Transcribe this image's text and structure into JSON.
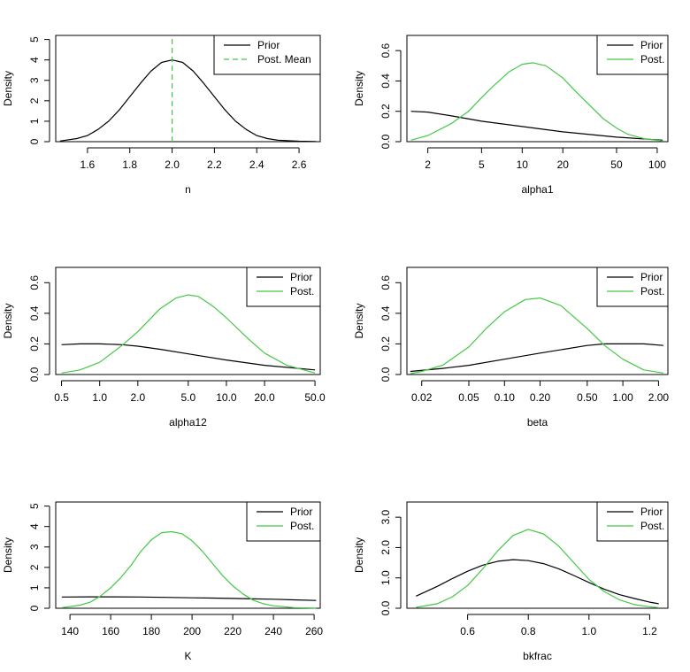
{
  "chart_data": [
    {
      "type": "line",
      "xlabel": "n",
      "ylabel": "Density",
      "xscale": "linear",
      "xlim": [
        1.45,
        2.7
      ],
      "ylim": [
        0,
        5.2
      ],
      "xticks": [
        1.6,
        1.8,
        2.0,
        2.2,
        2.4,
        2.6
      ],
      "xticklabels": [
        "1.6",
        "1.8",
        "2.0",
        "2.2",
        "2.4",
        "2.6"
      ],
      "yticks": [
        0,
        1,
        2,
        3,
        4,
        5
      ],
      "yticklabels": [
        "0",
        "1",
        "2",
        "3",
        "4",
        "5"
      ],
      "legend": "top-right",
      "series": [
        {
          "name": "Prior",
          "color": "#000000",
          "dash": "solid",
          "x": [
            1.47,
            1.55,
            1.6,
            1.65,
            1.7,
            1.75,
            1.8,
            1.85,
            1.9,
            1.95,
            2.0,
            2.05,
            2.1,
            2.15,
            2.2,
            2.25,
            2.3,
            2.35,
            2.4,
            2.45,
            2.5,
            2.6,
            2.68
          ],
          "y": [
            0.03,
            0.15,
            0.3,
            0.6,
            1.0,
            1.55,
            2.2,
            2.85,
            3.45,
            3.88,
            4.0,
            3.88,
            3.45,
            2.85,
            2.2,
            1.55,
            1.0,
            0.6,
            0.3,
            0.15,
            0.07,
            0.02,
            0.01
          ]
        },
        {
          "name": "Post. Mean",
          "color": "#44c844",
          "dash": "dashed",
          "x": [
            2.0,
            2.0
          ],
          "y": [
            0,
            5.2
          ]
        }
      ]
    },
    {
      "type": "line",
      "xlabel": "alpha1",
      "ylabel": "Density",
      "xscale": "log",
      "xlim": [
        1.4,
        120
      ],
      "ylim": [
        0,
        0.7
      ],
      "xticks": [
        2,
        5,
        10,
        20,
        50,
        100
      ],
      "xticklabels": [
        "2",
        "5",
        "10",
        "20",
        "50",
        "100"
      ],
      "yticks": [
        0,
        0.2,
        0.4,
        0.6
      ],
      "yticklabels": [
        "0.0",
        "0.2",
        "0.4",
        "0.6"
      ],
      "legend": "top-right",
      "series": [
        {
          "name": "Prior",
          "color": "#000000",
          "dash": "solid",
          "x": [
            1.5,
            2,
            3,
            5,
            10,
            20,
            50,
            110
          ],
          "y": [
            0.2,
            0.195,
            0.17,
            0.135,
            0.1,
            0.065,
            0.03,
            0.01
          ]
        },
        {
          "name": "Post.",
          "color": "#44c844",
          "dash": "solid",
          "x": [
            1.5,
            2,
            3,
            4,
            5,
            6,
            8,
            10,
            12,
            15,
            20,
            25,
            30,
            40,
            50,
            60,
            80,
            110
          ],
          "y": [
            0.01,
            0.04,
            0.12,
            0.2,
            0.29,
            0.36,
            0.46,
            0.51,
            0.52,
            0.5,
            0.42,
            0.33,
            0.26,
            0.15,
            0.09,
            0.05,
            0.02,
            0.005
          ]
        }
      ]
    },
    {
      "type": "line",
      "xlabel": "alpha12",
      "ylabel": "Density",
      "xscale": "log",
      "xlim": [
        0.45,
        55
      ],
      "ylim": [
        0,
        0.7
      ],
      "xticks": [
        0.5,
        1.0,
        2.0,
        5.0,
        10.0,
        20.0,
        50.0
      ],
      "xticklabels": [
        "0.5",
        "1.0",
        "2.0",
        "5.0",
        "10.0",
        "20.0",
        "50.0"
      ],
      "yticks": [
        0,
        0.2,
        0.4,
        0.6
      ],
      "yticklabels": [
        "0.0",
        "0.2",
        "0.4",
        "0.6"
      ],
      "legend": "top-right",
      "series": [
        {
          "name": "Prior",
          "color": "#000000",
          "dash": "solid",
          "x": [
            0.5,
            0.7,
            1.0,
            1.5,
            2.0,
            3.0,
            5.0,
            10.0,
            20.0,
            50.0
          ],
          "y": [
            0.195,
            0.2,
            0.2,
            0.195,
            0.185,
            0.165,
            0.135,
            0.095,
            0.06,
            0.03
          ]
        },
        {
          "name": "Post.",
          "color": "#44c844",
          "dash": "solid",
          "x": [
            0.5,
            0.7,
            1.0,
            1.5,
            2.0,
            3.0,
            4.0,
            5.0,
            6.0,
            8.0,
            10.0,
            15.0,
            20.0,
            30.0,
            50.0
          ],
          "y": [
            0.01,
            0.03,
            0.08,
            0.19,
            0.28,
            0.43,
            0.5,
            0.52,
            0.51,
            0.44,
            0.37,
            0.23,
            0.14,
            0.06,
            0.01
          ]
        }
      ]
    },
    {
      "type": "line",
      "xlabel": "beta",
      "ylabel": "Density",
      "xscale": "log",
      "xlim": [
        0.015,
        2.4
      ],
      "ylim": [
        0,
        0.7
      ],
      "xticks": [
        0.02,
        0.05,
        0.1,
        0.2,
        0.5,
        1.0,
        2.0
      ],
      "xticklabels": [
        "0.02",
        "0.05",
        "0.10",
        "0.20",
        "0.50",
        "1.00",
        "2.00"
      ],
      "yticks": [
        0,
        0.2,
        0.4,
        0.6
      ],
      "yticklabels": [
        "0.0",
        "0.2",
        "0.4",
        "0.6"
      ],
      "legend": "top-right",
      "series": [
        {
          "name": "Prior",
          "color": "#000000",
          "dash": "solid",
          "x": [
            0.016,
            0.03,
            0.05,
            0.1,
            0.2,
            0.5,
            0.7,
            1.0,
            1.5,
            2.2
          ],
          "y": [
            0.02,
            0.04,
            0.06,
            0.1,
            0.14,
            0.19,
            0.2,
            0.2,
            0.2,
            0.19
          ]
        },
        {
          "name": "Post.",
          "color": "#44c844",
          "dash": "solid",
          "x": [
            0.016,
            0.02,
            0.03,
            0.05,
            0.07,
            0.1,
            0.15,
            0.2,
            0.3,
            0.5,
            0.7,
            1.0,
            1.5,
            2.2
          ],
          "y": [
            0.005,
            0.02,
            0.06,
            0.18,
            0.3,
            0.41,
            0.49,
            0.5,
            0.45,
            0.3,
            0.19,
            0.1,
            0.03,
            0.01
          ]
        }
      ]
    },
    {
      "type": "line",
      "xlabel": "K",
      "ylabel": "Density",
      "xscale": "linear",
      "xlim": [
        133,
        263
      ],
      "ylim": [
        0,
        5.2
      ],
      "xticks": [
        140,
        160,
        180,
        200,
        220,
        240,
        260
      ],
      "xticklabels": [
        "140",
        "160",
        "180",
        "200",
        "220",
        "240",
        "260"
      ],
      "yticks": [
        0,
        1,
        2,
        3,
        4,
        5
      ],
      "yticklabels": [
        "0",
        "1",
        "2",
        "3",
        "4",
        "5"
      ],
      "legend": "top-right",
      "series": [
        {
          "name": "Prior",
          "color": "#000000",
          "dash": "solid",
          "x": [
            136,
            150,
            160,
            175,
            190,
            200,
            210,
            220,
            230,
            240,
            250,
            261
          ],
          "y": [
            0.55,
            0.56,
            0.56,
            0.55,
            0.53,
            0.51,
            0.5,
            0.48,
            0.46,
            0.44,
            0.41,
            0.38
          ]
        },
        {
          "name": "Post.",
          "color": "#44c844",
          "dash": "solid",
          "x": [
            136,
            145,
            150,
            155,
            160,
            165,
            170,
            175,
            180,
            185,
            190,
            195,
            200,
            205,
            210,
            215,
            220,
            225,
            230,
            235,
            240,
            250,
            261
          ],
          "y": [
            0.03,
            0.15,
            0.3,
            0.6,
            1.0,
            1.5,
            2.1,
            2.8,
            3.35,
            3.7,
            3.75,
            3.65,
            3.3,
            2.8,
            2.2,
            1.6,
            1.1,
            0.7,
            0.4,
            0.22,
            0.12,
            0.03,
            0.01
          ]
        }
      ]
    },
    {
      "type": "line",
      "xlabel": "bkfrac",
      "ylabel": "Density",
      "xscale": "linear",
      "xlim": [
        0.4,
        1.26
      ],
      "ylim": [
        0,
        3.5
      ],
      "xticks": [
        0.6,
        0.8,
        1.0,
        1.2
      ],
      "xticklabels": [
        "0.6",
        "0.8",
        "1.0",
        "1.2"
      ],
      "yticks": [
        0,
        1,
        2,
        3
      ],
      "yticklabels": [
        "0.0",
        "1.0",
        "2.0",
        "3.0"
      ],
      "legend": "top-right",
      "series": [
        {
          "name": "Prior",
          "color": "#000000",
          "dash": "solid",
          "x": [
            0.43,
            0.5,
            0.55,
            0.6,
            0.65,
            0.7,
            0.75,
            0.8,
            0.85,
            0.9,
            0.95,
            1.0,
            1.05,
            1.1,
            1.15,
            1.2,
            1.23
          ],
          "y": [
            0.4,
            0.72,
            0.98,
            1.22,
            1.42,
            1.55,
            1.6,
            1.57,
            1.47,
            1.3,
            1.08,
            0.85,
            0.63,
            0.45,
            0.32,
            0.2,
            0.15
          ]
        },
        {
          "name": "Post.",
          "color": "#44c844",
          "dash": "solid",
          "x": [
            0.43,
            0.5,
            0.55,
            0.6,
            0.65,
            0.7,
            0.75,
            0.8,
            0.85,
            0.9,
            0.95,
            1.0,
            1.05,
            1.1,
            1.15,
            1.2,
            1.23
          ],
          "y": [
            0.03,
            0.15,
            0.38,
            0.75,
            1.3,
            1.9,
            2.4,
            2.6,
            2.45,
            2.05,
            1.5,
            0.95,
            0.55,
            0.28,
            0.12,
            0.05,
            0.02
          ]
        }
      ]
    }
  ]
}
